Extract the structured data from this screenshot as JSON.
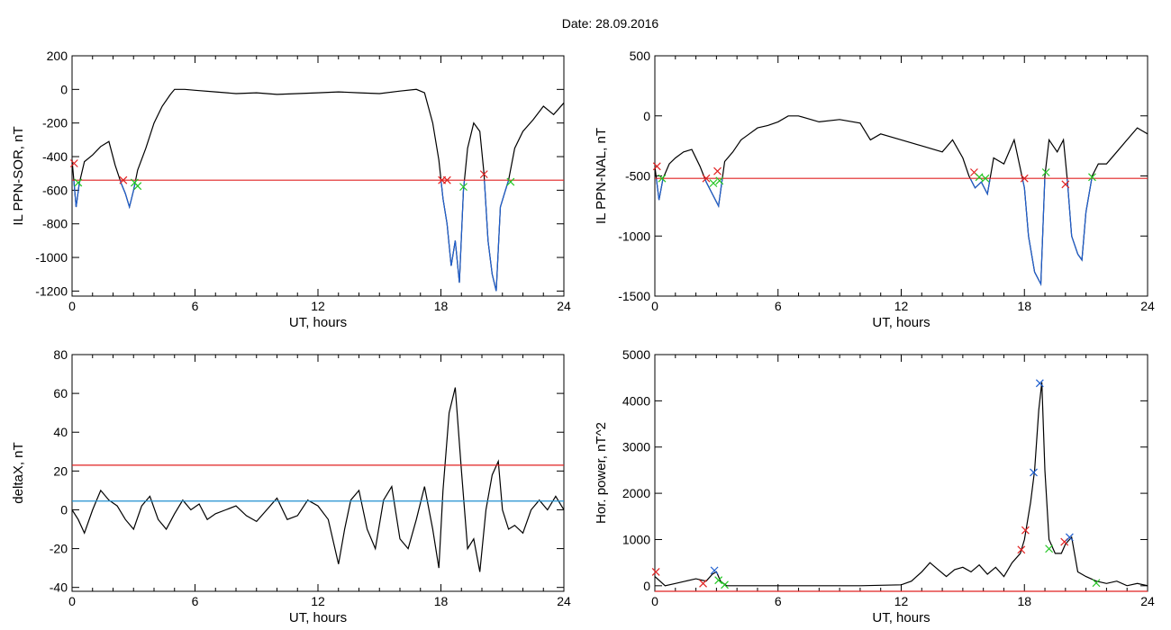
{
  "header": {
    "date_label": "Date:  28.09.2016"
  },
  "colors": {
    "frame": "#000000",
    "trace": "#000000",
    "below_trace": "#1f5fcf",
    "threshold_red": "#e02020",
    "threshold_blue": "#1f8fcf",
    "marker_red": "#e02020",
    "marker_green": "#22c522",
    "marker_blue": "#1f5fcf"
  },
  "chart_data": [
    {
      "id": "il-ppn-sor",
      "type": "line",
      "xlabel": "UT, hours",
      "ylabel": "IL PPN-SOR, nT",
      "xlim": [
        0,
        24
      ],
      "ylim": [
        -1230,
        200
      ],
      "xticks": [
        0,
        6,
        12,
        18,
        24
      ],
      "yticks": [
        200,
        0,
        -200,
        -400,
        -600,
        -800,
        -1000,
        -1200
      ],
      "threshold": {
        "value": -540,
        "color": "red"
      },
      "below_threshold_color": "blue",
      "series": [
        {
          "x": [
            0,
            0.2,
            0.35,
            0.6,
            1.0,
            1.4,
            1.8,
            2.1,
            2.4,
            2.6,
            2.8,
            3.0,
            3.2,
            3.6,
            4.0,
            4.4,
            4.8,
            5.0,
            5.5,
            6,
            7,
            8,
            9,
            10,
            11,
            12,
            13,
            14,
            15,
            16,
            16.8,
            17.2,
            17.6,
            17.9,
            18.1,
            18.3,
            18.5,
            18.7,
            18.9,
            19.1,
            19.3,
            19.6,
            19.9,
            20.1,
            20.3,
            20.5,
            20.7,
            20.9,
            21.1,
            21.3,
            21.6,
            22,
            22.5,
            23,
            23.5,
            24
          ],
          "y": [
            -420,
            -700,
            -560,
            -430,
            -390,
            -340,
            -310,
            -450,
            -560,
            -620,
            -700,
            -600,
            -480,
            -350,
            -200,
            -100,
            -30,
            0,
            0,
            -5,
            -15,
            -25,
            -20,
            -30,
            -25,
            -20,
            -15,
            -20,
            -25,
            -10,
            0,
            -20,
            -200,
            -420,
            -650,
            -800,
            -1050,
            -900,
            -1150,
            -600,
            -350,
            -200,
            -250,
            -500,
            -900,
            -1100,
            -1200,
            -700,
            -620,
            -540,
            -350,
            -250,
            -180,
            -100,
            -150,
            -80
          ]
        }
      ],
      "markers": [
        {
          "x": 0.1,
          "y": -440,
          "color": "red"
        },
        {
          "x": 0.3,
          "y": -555,
          "color": "green"
        },
        {
          "x": 2.5,
          "y": -540,
          "color": "red"
        },
        {
          "x": 3.05,
          "y": -555,
          "color": "green"
        },
        {
          "x": 3.2,
          "y": -575,
          "color": "green"
        },
        {
          "x": 18.05,
          "y": -540,
          "color": "red"
        },
        {
          "x": 18.3,
          "y": -540,
          "color": "red"
        },
        {
          "x": 19.1,
          "y": -580,
          "color": "green"
        },
        {
          "x": 20.1,
          "y": -505,
          "color": "red"
        },
        {
          "x": 21.4,
          "y": -550,
          "color": "green"
        }
      ]
    },
    {
      "id": "il-ppn-nal",
      "type": "line",
      "xlabel": "UT, hours",
      "ylabel": "IL PPN-NAL, nT",
      "xlim": [
        0,
        24
      ],
      "ylim": [
        -1500,
        500
      ],
      "xticks": [
        0,
        6,
        12,
        18,
        24
      ],
      "yticks": [
        500,
        0,
        -500,
        -1000,
        -1500
      ],
      "threshold": {
        "value": -520,
        "color": "red"
      },
      "below_threshold_color": "blue",
      "series": [
        {
          "x": [
            0,
            0.2,
            0.4,
            0.7,
            1.0,
            1.4,
            1.8,
            2.2,
            2.5,
            2.8,
            3.1,
            3.4,
            3.8,
            4.2,
            4.6,
            5.0,
            5.5,
            6.0,
            6.5,
            7,
            8,
            9,
            10,
            10.5,
            11,
            12,
            13,
            14,
            14.5,
            15,
            15.3,
            15.6,
            15.9,
            16.2,
            16.5,
            17,
            17.5,
            18,
            18.2,
            18.5,
            18.8,
            19.0,
            19.2,
            19.6,
            19.9,
            20.1,
            20.3,
            20.6,
            20.8,
            21.0,
            21.3,
            21.6,
            22,
            22.5,
            23,
            23.5,
            24
          ],
          "y": [
            -420,
            -700,
            -520,
            -400,
            -350,
            -300,
            -280,
            -420,
            -550,
            -650,
            -750,
            -380,
            -300,
            -200,
            -150,
            -100,
            -80,
            -50,
            0,
            0,
            -50,
            -30,
            -60,
            -200,
            -150,
            -200,
            -250,
            -300,
            -200,
            -350,
            -500,
            -600,
            -550,
            -650,
            -350,
            -400,
            -200,
            -600,
            -1000,
            -1300,
            -1400,
            -500,
            -200,
            -300,
            -200,
            -550,
            -1000,
            -1150,
            -1200,
            -800,
            -500,
            -400,
            -400,
            -300,
            -200,
            -100,
            -150
          ]
        }
      ],
      "markers": [
        {
          "x": 0.1,
          "y": -420,
          "color": "red"
        },
        {
          "x": 0.35,
          "y": -520,
          "color": "green"
        },
        {
          "x": 2.5,
          "y": -520,
          "color": "red"
        },
        {
          "x": 2.85,
          "y": -560,
          "color": "green"
        },
        {
          "x": 3.05,
          "y": -460,
          "color": "red"
        },
        {
          "x": 3.15,
          "y": -540,
          "color": "green"
        },
        {
          "x": 15.55,
          "y": -470,
          "color": "red"
        },
        {
          "x": 15.8,
          "y": -510,
          "color": "green"
        },
        {
          "x": 16.1,
          "y": -520,
          "color": "green"
        },
        {
          "x": 18.0,
          "y": -520,
          "color": "red"
        },
        {
          "x": 19.05,
          "y": -470,
          "color": "green"
        },
        {
          "x": 20.0,
          "y": -570,
          "color": "red"
        },
        {
          "x": 21.3,
          "y": -510,
          "color": "green"
        }
      ]
    },
    {
      "id": "delta-x",
      "type": "line",
      "xlabel": "UT, hours",
      "ylabel": "deltaX, nT",
      "xlim": [
        0,
        24
      ],
      "ylim": [
        -42,
        80
      ],
      "xticks": [
        0,
        6,
        12,
        18,
        24
      ],
      "yticks": [
        80,
        60,
        40,
        20,
        0,
        -20,
        -40
      ],
      "thresholds": [
        {
          "value": 23,
          "color": "red"
        },
        {
          "value": 4.5,
          "color": "blue"
        }
      ],
      "series": [
        {
          "x": [
            0,
            0.3,
            0.6,
            1.0,
            1.4,
            1.8,
            2.2,
            2.6,
            3.0,
            3.4,
            3.8,
            4.2,
            4.6,
            5.0,
            5.4,
            5.8,
            6.2,
            6.6,
            7,
            7.5,
            8,
            8.5,
            9,
            9.5,
            10,
            10.5,
            11,
            11.5,
            12,
            12.5,
            13,
            13.3,
            13.6,
            14.0,
            14.4,
            14.8,
            15.2,
            15.6,
            16.0,
            16.4,
            16.8,
            17.2,
            17.6,
            17.9,
            18.1,
            18.4,
            18.7,
            19.0,
            19.3,
            19.6,
            19.9,
            20.2,
            20.5,
            20.8,
            21.0,
            21.3,
            21.6,
            22,
            22.4,
            22.8,
            23.2,
            23.6,
            24
          ],
          "y": [
            0,
            -5,
            -12,
            0,
            10,
            5,
            2,
            -5,
            -10,
            2,
            7,
            -5,
            -10,
            -2,
            5,
            0,
            3,
            -5,
            -2,
            0,
            2,
            -3,
            -6,
            0,
            6,
            -5,
            -3,
            5,
            2,
            -5,
            -28,
            -10,
            5,
            10,
            -10,
            -20,
            5,
            12,
            -15,
            -20,
            -5,
            12,
            -10,
            -30,
            10,
            50,
            63,
            20,
            -20,
            -15,
            -32,
            0,
            18,
            25,
            0,
            -10,
            -8,
            -12,
            0,
            5,
            0,
            7,
            0
          ]
        }
      ]
    },
    {
      "id": "hor-power",
      "type": "line",
      "xlabel": "UT, hours",
      "ylabel": "Hor. power, nT^2",
      "xlim": [
        0,
        24
      ],
      "ylim": [
        -120,
        5000
      ],
      "xticks": [
        0,
        6,
        12,
        18,
        24
      ],
      "yticks": [
        5000,
        4000,
        3000,
        2000,
        1000,
        0
      ],
      "ytick_labels": [
        "5000",
        "4000",
        "3000",
        "2000",
        "1000",
        "0"
      ],
      "threshold": {
        "value": -120,
        "color": "red"
      },
      "series": [
        {
          "x": [
            0,
            0.5,
            1.0,
            1.5,
            2.0,
            2.5,
            2.8,
            3.0,
            3.2,
            3.5,
            4,
            5,
            6,
            8,
            10,
            12,
            12.5,
            13,
            13.4,
            13.8,
            14.2,
            14.6,
            15,
            15.4,
            15.8,
            16.2,
            16.6,
            17,
            17.4,
            17.8,
            18.0,
            18.3,
            18.5,
            18.7,
            18.85,
            19.0,
            19.2,
            19.5,
            19.8,
            20.0,
            20.3,
            20.6,
            21.0,
            21.5,
            22,
            22.5,
            23,
            23.5,
            24
          ],
          "y": [
            200,
            0,
            50,
            100,
            150,
            100,
            250,
            300,
            100,
            0,
            0,
            0,
            0,
            0,
            0,
            20,
            100,
            300,
            500,
            350,
            200,
            350,
            400,
            300,
            450,
            250,
            400,
            200,
            500,
            700,
            1000,
            1800,
            2500,
            3800,
            4400,
            2500,
            1000,
            700,
            700,
            900,
            1050,
            300,
            200,
            100,
            50,
            100,
            0,
            50,
            0
          ]
        }
      ],
      "markers": [
        {
          "x": 0.05,
          "y": 300,
          "color": "red"
        },
        {
          "x": 2.35,
          "y": 50,
          "color": "red"
        },
        {
          "x": 2.9,
          "y": 330,
          "color": "blue"
        },
        {
          "x": 3.1,
          "y": 120,
          "color": "green"
        },
        {
          "x": 3.4,
          "y": 20,
          "color": "green"
        },
        {
          "x": 17.85,
          "y": 780,
          "color": "red"
        },
        {
          "x": 18.05,
          "y": 1200,
          "color": "red"
        },
        {
          "x": 18.45,
          "y": 2450,
          "color": "blue"
        },
        {
          "x": 18.75,
          "y": 4380,
          "color": "blue"
        },
        {
          "x": 19.2,
          "y": 800,
          "color": "green"
        },
        {
          "x": 19.95,
          "y": 950,
          "color": "red"
        },
        {
          "x": 20.2,
          "y": 1050,
          "color": "blue"
        },
        {
          "x": 21.5,
          "y": 60,
          "color": "green"
        }
      ]
    }
  ]
}
